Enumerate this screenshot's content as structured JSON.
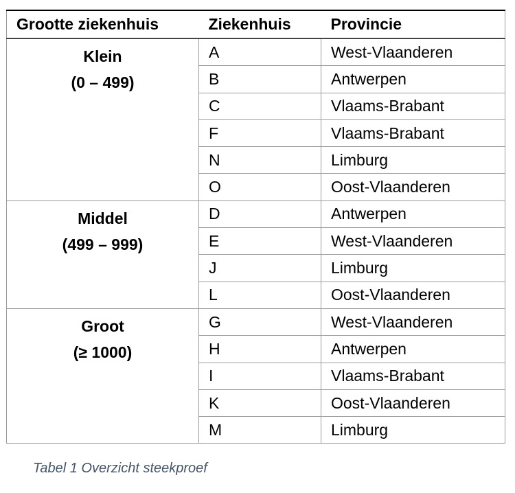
{
  "table": {
    "header": [
      "Grootte ziekenhuis",
      "Ziekenhuis",
      "Provincie"
    ],
    "groups": [
      {
        "name": "Klein",
        "range": "(0 – 499)",
        "rows": [
          [
            "A",
            "West-Vlaanderen"
          ],
          [
            "B",
            "Antwerpen"
          ],
          [
            "C",
            "Vlaams-Brabant"
          ],
          [
            "F",
            "Vlaams-Brabant"
          ],
          [
            "N",
            "Limburg"
          ],
          [
            "O",
            "Oost-Vlaanderen"
          ]
        ]
      },
      {
        "name": "Middel",
        "range": "(499 – 999)",
        "rows": [
          [
            "D",
            "Antwerpen"
          ],
          [
            "E",
            "West-Vlaanderen"
          ],
          [
            "J",
            "Limburg"
          ],
          [
            "L",
            "Oost-Vlaanderen"
          ]
        ]
      },
      {
        "name": "Groot",
        "range": "(≥ 1000)",
        "rows": [
          [
            "G",
            "West-Vlaanderen"
          ],
          [
            "H",
            "Antwerpen"
          ],
          [
            "I",
            "Vlaams-Brabant"
          ],
          [
            "K",
            "Oost-Vlaanderen"
          ],
          [
            "M",
            "Limburg"
          ]
        ]
      }
    ]
  },
  "caption": "Tabel 1 Overzicht steekproef"
}
